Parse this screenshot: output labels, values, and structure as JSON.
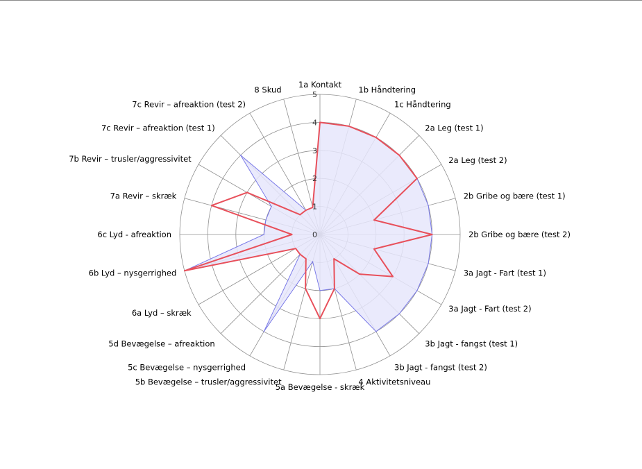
{
  "chart_data": {
    "type": "radar",
    "categories": [
      "1a Kontakt",
      "1b Håndtering",
      "1c Håndtering",
      "2a Leg (test 1)",
      "2a Leg (test 2)",
      "2b Gribe og bære (test 1)",
      "2b Gribe og bære (test 2)",
      "3a Jagt - Fart (test 1)",
      "3a Jagt - Fart (test 2)",
      "3b Jagt - fangst (test 1)",
      "3b Jagt - fangst (test 2)",
      "4 Aktivitetsniveau",
      "5a Bevægelse - skræk",
      "5b Bevægelse – trusler/aggressivitet",
      "5c Bevægelse – nysgerrighed",
      "5d Bevægelse – afreaktion",
      "6a Lyd – skræk",
      "6b Lyd – nysgerrighed",
      "6c Lyd - afreaktion",
      "7a Revir – skræk",
      "7b Revir – trusler/aggressivitet",
      "7c Revir – afreaktion (test 1)",
      "7c Revir – afreaktion (test 2)",
      "8 Skud"
    ],
    "radial_ticks": [
      "0",
      "1",
      "2",
      "3",
      "4",
      "5"
    ],
    "rmax": 5,
    "series": [
      {
        "color": "#7b7be8",
        "fill": "#e6e6fb",
        "values": [
          4,
          4,
          4,
          4,
          4,
          4,
          4,
          4,
          4,
          4,
          4,
          2,
          2,
          1,
          4,
          1,
          1,
          5,
          2,
          2,
          2,
          4,
          1,
          1
        ]
      },
      {
        "color": "#e8505b",
        "values": [
          4,
          4,
          4,
          4,
          4,
          2,
          4,
          2,
          3,
          2,
          1,
          2,
          3,
          2,
          1,
          1,
          1,
          5,
          1,
          4,
          3,
          1,
          1,
          1
        ]
      }
    ],
    "grid": true,
    "legend": "none"
  }
}
